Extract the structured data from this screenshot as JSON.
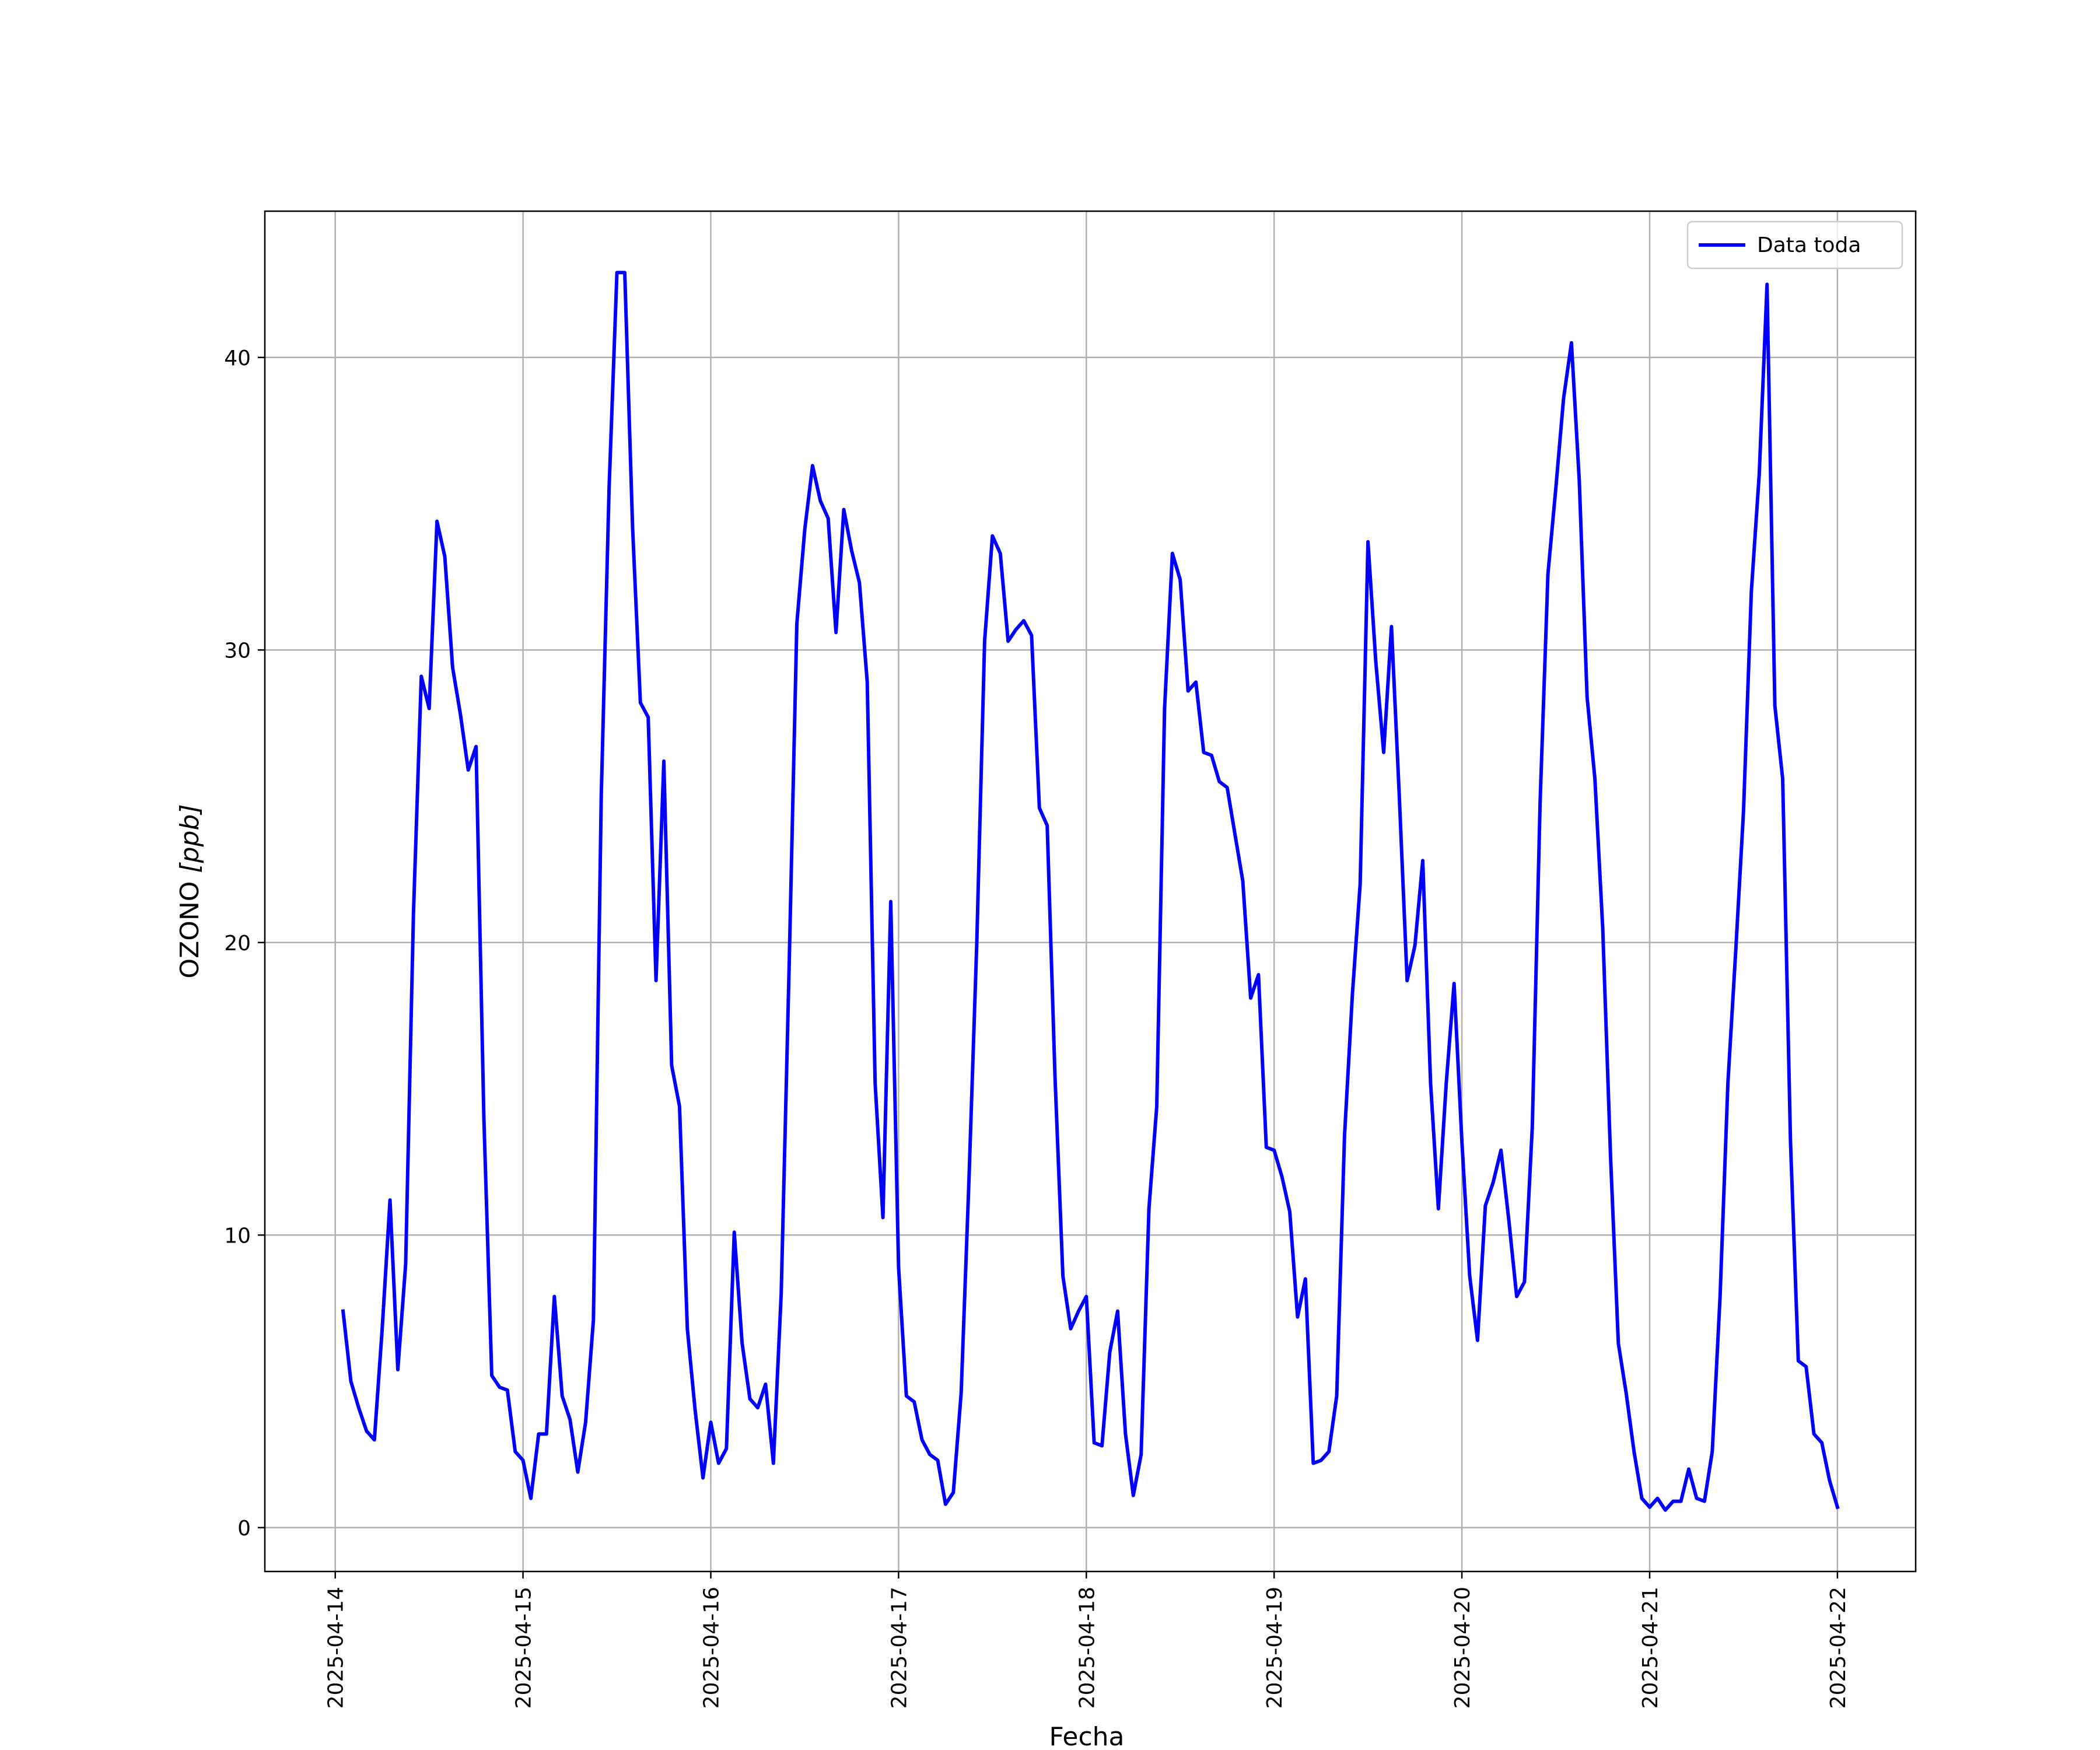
{
  "chart_data": {
    "type": "line",
    "title": "",
    "xlabel": "Fecha",
    "ylabel": "OZONO [ppb]",
    "ylabel_main": "OZONO ",
    "ylabel_unit": "[ppb]",
    "xlim": [
      "2025-04-13 15:00",
      "2025-04-22 10:00"
    ],
    "ylim": [
      -1.5,
      45
    ],
    "grid": true,
    "legend_position": "top-right",
    "x_ticks": [
      "2025-04-14",
      "2025-04-15",
      "2025-04-16",
      "2025-04-17",
      "2025-04-18",
      "2025-04-19",
      "2025-04-20",
      "2025-04-21",
      "2025-04-22"
    ],
    "y_ticks": [
      0,
      10,
      20,
      30,
      40
    ],
    "x_start": "2025-04-14 01:00",
    "x_step_hours": 1,
    "series": [
      {
        "name": "Data toda",
        "color": "#0000ff",
        "values": [
          7.4,
          5.0,
          4.1,
          3.3,
          3.0,
          6.8,
          11.2,
          5.4,
          9.0,
          21.0,
          29.1,
          28.0,
          34.4,
          33.2,
          29.4,
          27.8,
          25.9,
          26.7,
          14.0,
          5.2,
          4.8,
          4.7,
          2.6,
          2.3,
          1.0,
          3.2,
          3.2,
          7.9,
          4.5,
          3.7,
          1.9,
          3.6,
          7.1,
          25.0,
          35.5,
          42.9,
          42.9,
          34.2,
          28.2,
          27.7,
          18.7,
          26.2,
          15.8,
          14.4,
          6.8,
          4.0,
          1.7,
          3.6,
          2.2,
          2.7,
          10.1,
          6.3,
          4.4,
          4.1,
          4.9,
          2.2,
          8.0,
          19.0,
          30.9,
          34.1,
          36.3,
          35.1,
          34.5,
          30.6,
          34.8,
          33.4,
          32.3,
          28.9,
          15.2,
          10.6,
          21.4,
          8.9,
          4.5,
          4.3,
          3.0,
          2.5,
          2.3,
          0.8,
          1.2,
          4.6,
          11.9,
          20.0,
          30.3,
          33.9,
          33.3,
          30.3,
          30.7,
          31.0,
          30.5,
          24.6,
          24.0,
          15.4,
          8.6,
          6.8,
          7.4,
          7.9,
          2.9,
          2.8,
          6.0,
          7.4,
          3.2,
          1.1,
          2.5,
          10.9,
          14.4,
          28.0,
          33.3,
          32.4,
          28.6,
          28.9,
          26.5,
          26.4,
          25.5,
          25.3,
          23.7,
          22.1,
          18.1,
          18.9,
          13.0,
          12.9,
          12.0,
          10.8,
          7.2,
          8.5,
          2.2,
          2.3,
          2.6,
          4.5,
          13.4,
          18.2,
          22.0,
          33.7,
          29.6,
          26.5,
          30.8,
          25.0,
          18.7,
          19.9,
          22.8,
          15.2,
          10.9,
          15.2,
          18.6,
          13.2,
          8.6,
          6.4,
          11.0,
          11.8,
          12.9,
          10.5,
          7.9,
          8.4,
          13.7,
          24.8,
          32.6,
          35.5,
          38.6,
          40.5,
          35.8,
          28.4,
          25.6,
          20.5,
          12.7,
          6.3,
          4.6,
          2.6,
          1.0,
          0.7,
          1.0,
          0.6,
          0.9,
          0.9,
          2.0,
          1.0,
          0.9,
          2.6,
          7.9,
          15.2,
          19.7,
          24.5,
          32.0,
          36.0,
          42.5,
          28.1,
          25.6,
          13.2,
          5.7,
          5.5,
          3.2,
          2.9,
          1.6,
          0.7
        ]
      }
    ]
  }
}
